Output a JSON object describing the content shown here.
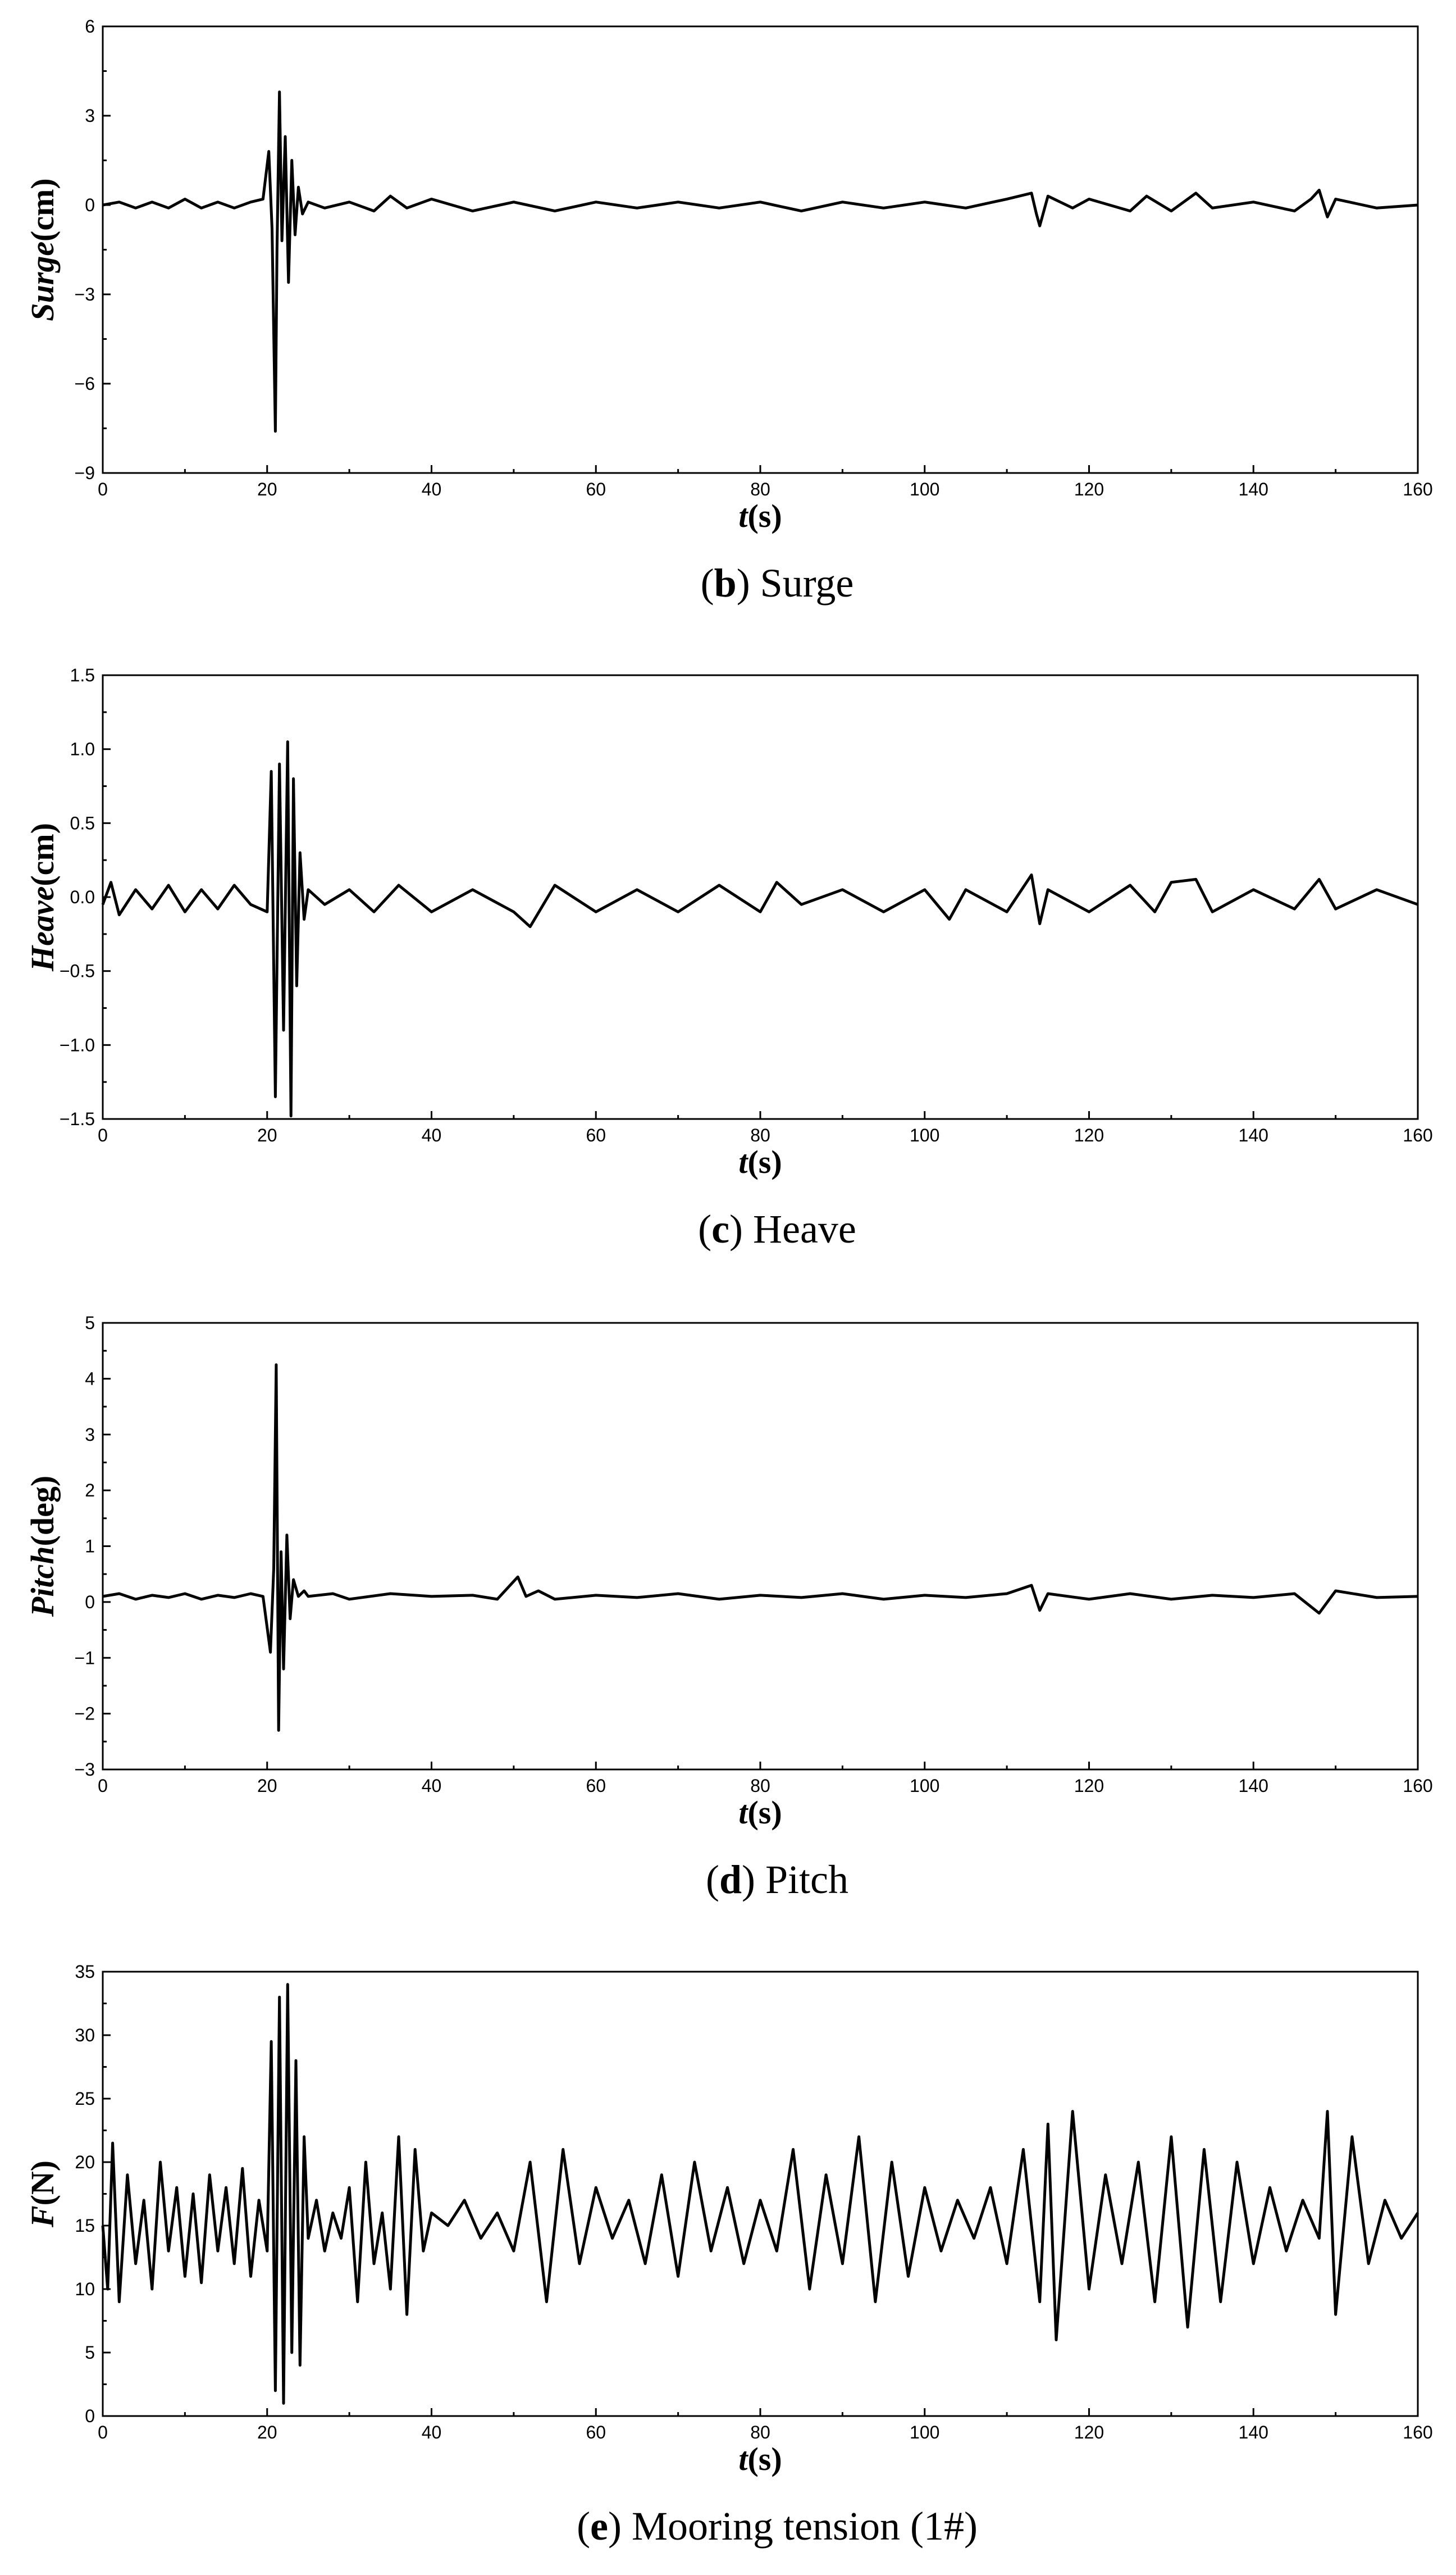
{
  "figure": {
    "panels": [
      {
        "caption_letter": "b",
        "caption_text": "Surge",
        "xlabel_main": "t",
        "xlabel_unit": "(s)",
        "ylabel_main": "Surge",
        "ylabel_unit": "(cm)",
        "xticks": [
          "0",
          "20",
          "40",
          "60",
          "80",
          "100",
          "120",
          "140",
          "160"
        ],
        "yticks": [
          "−9",
          "−6",
          "−3",
          "0",
          "3",
          "6"
        ]
      },
      {
        "caption_letter": "c",
        "caption_text": "Heave",
        "xlabel_main": "t",
        "xlabel_unit": "(s)",
        "ylabel_main": "Heave",
        "ylabel_unit": "(cm)",
        "xticks": [
          "0",
          "20",
          "40",
          "60",
          "80",
          "100",
          "120",
          "140",
          "160"
        ],
        "yticks": [
          "−1.5",
          "−1.0",
          "−0.5",
          "0.0",
          "0.5",
          "1.0",
          "1.5"
        ]
      },
      {
        "caption_letter": "d",
        "caption_text": "Pitch",
        "xlabel_main": "t",
        "xlabel_unit": "(s)",
        "ylabel_main": "Pitch",
        "ylabel_unit": "(deg)",
        "xticks": [
          "0",
          "20",
          "40",
          "60",
          "80",
          "100",
          "120",
          "140",
          "160"
        ],
        "yticks": [
          "−3",
          "−2",
          "−1",
          "0",
          "1",
          "2",
          "3",
          "4",
          "5"
        ]
      },
      {
        "caption_letter": "e",
        "caption_text": "Mooring tension (1#)",
        "xlabel_main": "t",
        "xlabel_unit": "(s)",
        "ylabel_main": "F",
        "ylabel_unit": "(N)",
        "xticks": [
          "0",
          "20",
          "40",
          "60",
          "80",
          "100",
          "120",
          "140",
          "160"
        ],
        "yticks": [
          "0",
          "5",
          "10",
          "15",
          "20",
          "25",
          "30",
          "35"
        ]
      }
    ]
  },
  "chart_data": [
    {
      "type": "line",
      "xlabel": "t(s)",
      "ylabel": "Surge(cm)",
      "xlim": [
        0,
        160
      ],
      "ylim": [
        -9,
        6
      ],
      "series": [
        {
          "x": [
            0,
            2,
            4,
            6,
            8,
            10,
            12,
            14,
            16,
            18,
            19.5,
            20.2,
            20.6,
            21.0,
            21.2,
            21.5,
            21.8,
            22.2,
            22.6,
            23.0,
            23.4,
            23.8,
            24.3,
            25,
            27,
            30,
            33,
            35,
            37,
            40,
            45,
            50,
            55,
            60,
            65,
            70,
            75,
            80,
            85,
            90,
            95,
            100,
            105,
            110,
            113,
            113.6,
            114,
            115,
            118,
            120,
            125,
            127,
            130,
            133,
            135,
            140,
            145,
            147,
            148,
            149,
            150,
            155,
            160
          ],
          "y": [
            0,
            0.1,
            -0.1,
            0.1,
            -0.1,
            0.2,
            -0.1,
            0.1,
            -0.1,
            0.1,
            0.2,
            1.8,
            -0.8,
            -7.6,
            -1.5,
            3.8,
            -1.2,
            2.3,
            -2.6,
            1.5,
            -1.0,
            0.6,
            -0.3,
            0.1,
            -0.1,
            0.1,
            -0.2,
            0.3,
            -0.1,
            0.2,
            -0.2,
            0.1,
            -0.2,
            0.1,
            -0.1,
            0.1,
            -0.1,
            0.1,
            -0.2,
            0.1,
            -0.1,
            0.1,
            -0.1,
            0.2,
            0.4,
            -0.3,
            -0.7,
            0.3,
            -0.1,
            0.2,
            -0.2,
            0.3,
            -0.2,
            0.4,
            -0.1,
            0.1,
            -0.2,
            0.2,
            0.5,
            -0.4,
            0.2,
            -0.1,
            0
          ]
        }
      ]
    },
    {
      "type": "line",
      "xlabel": "t(s)",
      "ylabel": "Heave(cm)",
      "xlim": [
        0,
        160
      ],
      "ylim": [
        -1.5,
        1.5
      ],
      "series": [
        {
          "x": [
            0,
            1,
            2,
            4,
            6,
            8,
            10,
            12,
            14,
            16,
            18,
            20,
            20.5,
            21.0,
            21.5,
            22.0,
            22.5,
            22.9,
            23.2,
            23.6,
            24.0,
            24.5,
            25,
            27,
            30,
            33,
            36,
            40,
            45,
            50,
            52,
            55,
            60,
            65,
            70,
            75,
            80,
            82,
            85,
            90,
            95,
            100,
            103,
            105,
            110,
            113,
            114,
            115,
            120,
            125,
            128,
            130,
            133,
            135,
            140,
            145,
            148,
            150,
            155,
            160
          ],
          "y": [
            -0.05,
            0.1,
            -0.12,
            0.05,
            -0.08,
            0.08,
            -0.1,
            0.05,
            -0.08,
            0.08,
            -0.05,
            -0.1,
            0.85,
            -1.35,
            0.9,
            -0.9,
            1.05,
            -1.48,
            0.8,
            -0.6,
            0.3,
            -0.15,
            0.05,
            -0.05,
            0.05,
            -0.1,
            0.08,
            -0.1,
            0.05,
            -0.1,
            -0.2,
            0.08,
            -0.1,
            0.05,
            -0.1,
            0.08,
            -0.1,
            0.1,
            -0.05,
            0.05,
            -0.1,
            0.05,
            -0.15,
            0.05,
            -0.1,
            0.15,
            -0.18,
            0.05,
            -0.1,
            0.08,
            -0.1,
            0.1,
            0.12,
            -0.1,
            0.05,
            -0.08,
            0.12,
            -0.08,
            0.05,
            -0.05
          ]
        }
      ]
    },
    {
      "type": "line",
      "xlabel": "t(s)",
      "ylabel": "Pitch(deg)",
      "xlim": [
        0,
        160
      ],
      "ylim": [
        -3,
        5
      ],
      "series": [
        {
          "x": [
            0,
            2,
            4,
            6,
            8,
            10,
            12,
            14,
            16,
            18,
            19.5,
            20.4,
            20.8,
            21.1,
            21.4,
            21.7,
            22.0,
            22.4,
            22.8,
            23.2,
            23.8,
            24.5,
            25,
            28,
            30,
            35,
            40,
            45,
            48,
            50.5,
            51.5,
            53,
            55,
            60,
            65,
            70,
            75,
            80,
            85,
            90,
            95,
            100,
            105,
            110,
            113,
            114,
            115,
            120,
            125,
            130,
            135,
            140,
            145,
            148,
            150,
            155,
            160
          ],
          "y": [
            0.1,
            0.15,
            0.05,
            0.12,
            0.08,
            0.15,
            0.05,
            0.12,
            0.08,
            0.15,
            0.1,
            -0.9,
            0.6,
            4.25,
            -2.3,
            0.9,
            -1.2,
            1.2,
            -0.3,
            0.4,
            0.1,
            0.2,
            0.1,
            0.15,
            0.05,
            0.15,
            0.1,
            0.12,
            0.05,
            0.45,
            0.1,
            0.2,
            0.05,
            0.12,
            0.08,
            0.15,
            0.05,
            0.12,
            0.08,
            0.15,
            0.05,
            0.12,
            0.08,
            0.15,
            0.3,
            -0.15,
            0.15,
            0.05,
            0.15,
            0.05,
            0.12,
            0.08,
            0.15,
            -0.2,
            0.2,
            0.08,
            0.1
          ]
        }
      ]
    },
    {
      "type": "line",
      "xlabel": "t(s)",
      "ylabel": "F(N)",
      "xlim": [
        0,
        160
      ],
      "ylim": [
        0,
        35
      ],
      "series": [
        {
          "x": [
            0,
            0.6,
            1.2,
            2,
            3,
            4,
            5,
            6,
            7,
            8,
            9,
            10,
            11,
            12,
            13,
            14,
            15,
            16,
            17,
            18,
            19,
            20,
            20.5,
            21.0,
            21.5,
            22.0,
            22.5,
            23.0,
            23.5,
            24.0,
            24.5,
            25,
            26,
            27,
            28,
            29,
            30,
            31,
            32,
            33,
            34,
            35,
            36,
            37,
            38,
            39,
            40,
            42,
            44,
            46,
            48,
            50,
            52,
            54,
            56,
            58,
            60,
            62,
            64,
            66,
            68,
            70,
            72,
            74,
            76,
            78,
            80,
            82,
            84,
            86,
            88,
            90,
            92,
            94,
            96,
            98,
            100,
            102,
            104,
            106,
            108,
            110,
            112,
            114,
            115,
            116,
            118,
            120,
            122,
            124,
            126,
            128,
            130,
            132,
            134,
            136,
            138,
            140,
            142,
            144,
            146,
            148,
            149,
            150,
            152,
            154,
            156,
            158,
            160
          ],
          "y": [
            15,
            10,
            21.5,
            9,
            19,
            12,
            17,
            10,
            20,
            13,
            18,
            11,
            17.5,
            10.5,
            19,
            13,
            18,
            12,
            19.5,
            11,
            17,
            13,
            29.5,
            2,
            33,
            1,
            34,
            5,
            28,
            4,
            22,
            14,
            17,
            13,
            16,
            14,
            18,
            9,
            20,
            12,
            16,
            10,
            22,
            8,
            21,
            13,
            16,
            15,
            17,
            14,
            16,
            13,
            20,
            9,
            21,
            12,
            18,
            14,
            17,
            12,
            19,
            11,
            20,
            13,
            18,
            12,
            17,
            13,
            21,
            10,
            19,
            12,
            22,
            9,
            20,
            11,
            18,
            13,
            17,
            14,
            18,
            12,
            21,
            9,
            23,
            6,
            24,
            10,
            19,
            12,
            20,
            9,
            22,
            7,
            21,
            9,
            20,
            12,
            18,
            13,
            17,
            14,
            24,
            8,
            22,
            12,
            17,
            14,
            16
          ]
        }
      ]
    }
  ]
}
